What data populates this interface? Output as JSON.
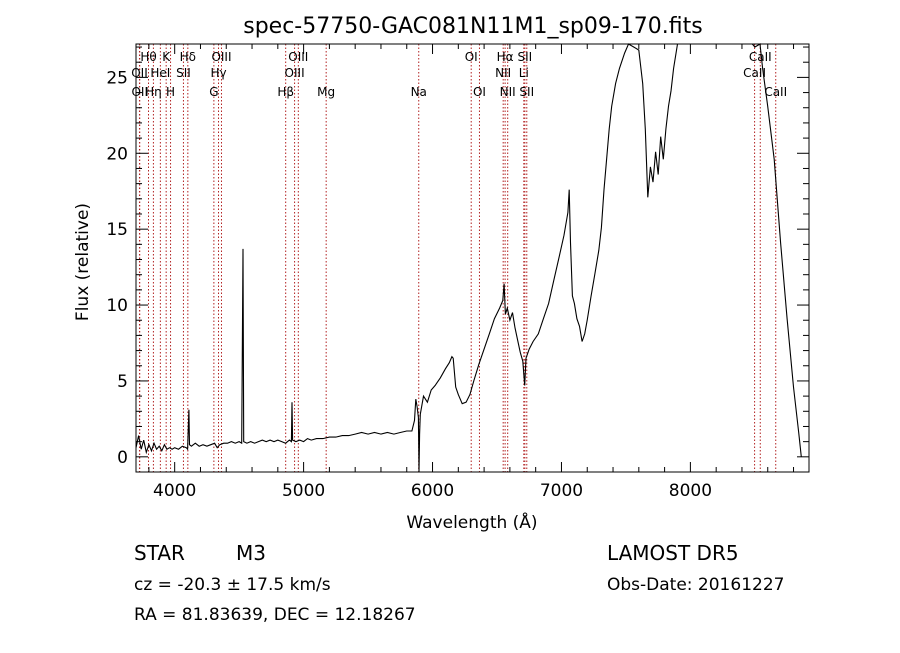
{
  "chart_data": {
    "type": "line",
    "title": "spec-57750-GAC081N11M1_sp09-170.fits",
    "xlabel": "Wavelength (Å)",
    "ylabel": "Flux (relative)",
    "xlim": [
      3700,
      8920
    ],
    "ylim": [
      -1,
      27.2
    ],
    "xticks": [
      4000,
      5000,
      6000,
      7000,
      8000
    ],
    "yticks": [
      0,
      5,
      10,
      15,
      20,
      25
    ],
    "grid": false,
    "series": [
      {
        "points": [
          [
            3700,
            0.6
          ],
          [
            3720,
            1.4
          ],
          [
            3740,
            0.5
          ],
          [
            3760,
            1.1
          ],
          [
            3780,
            0.3
          ],
          [
            3800,
            0.8
          ],
          [
            3820,
            0.4
          ],
          [
            3840,
            0.9
          ],
          [
            3860,
            0.5
          ],
          [
            3880,
            0.7
          ],
          [
            3900,
            0.4
          ],
          [
            3920,
            0.8
          ],
          [
            3940,
            0.5
          ],
          [
            3960,
            0.6
          ],
          [
            3980,
            0.5
          ],
          [
            4000,
            0.6
          ],
          [
            4030,
            0.5
          ],
          [
            4060,
            0.7
          ],
          [
            4090,
            0.6
          ],
          [
            4100,
            0.5
          ],
          [
            4110,
            3.1
          ],
          [
            4115,
            0.8
          ],
          [
            4130,
            0.7
          ],
          [
            4160,
            0.9
          ],
          [
            4190,
            0.7
          ],
          [
            4220,
            0.8
          ],
          [
            4250,
            0.7
          ],
          [
            4280,
            0.8
          ],
          [
            4310,
            0.9
          ],
          [
            4330,
            0.6
          ],
          [
            4350,
            0.8
          ],
          [
            4380,
            0.9
          ],
          [
            4410,
            0.9
          ],
          [
            4440,
            1.0
          ],
          [
            4470,
            0.9
          ],
          [
            4500,
            1.0
          ],
          [
            4520,
            0.9
          ],
          [
            4530,
            13.7
          ],
          [
            4535,
            1.0
          ],
          [
            4560,
            0.9
          ],
          [
            4590,
            1.0
          ],
          [
            4620,
            0.9
          ],
          [
            4650,
            1.0
          ],
          [
            4680,
            1.1
          ],
          [
            4710,
            1.0
          ],
          [
            4740,
            1.1
          ],
          [
            4770,
            1.0
          ],
          [
            4800,
            1.1
          ],
          [
            4830,
            1.0
          ],
          [
            4860,
            0.9
          ],
          [
            4890,
            1.1
          ],
          [
            4905,
            1.0
          ],
          [
            4910,
            3.6
          ],
          [
            4915,
            1.1
          ],
          [
            4940,
            1.0
          ],
          [
            4970,
            1.1
          ],
          [
            5000,
            1.0
          ],
          [
            5030,
            1.2
          ],
          [
            5060,
            1.1
          ],
          [
            5100,
            1.2
          ],
          [
            5150,
            1.2
          ],
          [
            5200,
            1.3
          ],
          [
            5250,
            1.3
          ],
          [
            5300,
            1.4
          ],
          [
            5350,
            1.4
          ],
          [
            5400,
            1.5
          ],
          [
            5450,
            1.6
          ],
          [
            5500,
            1.5
          ],
          [
            5550,
            1.6
          ],
          [
            5600,
            1.5
          ],
          [
            5650,
            1.6
          ],
          [
            5700,
            1.5
          ],
          [
            5750,
            1.6
          ],
          [
            5800,
            1.7
          ],
          [
            5840,
            1.7
          ],
          [
            5860,
            2.4
          ],
          [
            5870,
            3.8
          ],
          [
            5880,
            3.3
          ],
          [
            5890,
            2.6
          ],
          [
            5895,
            -1.0
          ],
          [
            5900,
            1.5
          ],
          [
            5905,
            2.8
          ],
          [
            5930,
            4.0
          ],
          [
            5960,
            3.6
          ],
          [
            5990,
            4.4
          ],
          [
            6020,
            4.7
          ],
          [
            6060,
            5.2
          ],
          [
            6100,
            5.8
          ],
          [
            6130,
            6.2
          ],
          [
            6150,
            6.6
          ],
          [
            6160,
            6.5
          ],
          [
            6180,
            4.6
          ],
          [
            6200,
            4.1
          ],
          [
            6230,
            3.5
          ],
          [
            6260,
            3.6
          ],
          [
            6290,
            4.1
          ],
          [
            6320,
            5.0
          ],
          [
            6360,
            6.1
          ],
          [
            6400,
            7.1
          ],
          [
            6440,
            8.1
          ],
          [
            6480,
            9.1
          ],
          [
            6520,
            9.8
          ],
          [
            6545,
            10.3
          ],
          [
            6555,
            11.4
          ],
          [
            6565,
            9.4
          ],
          [
            6580,
            9.8
          ],
          [
            6600,
            9.0
          ],
          [
            6620,
            9.5
          ],
          [
            6640,
            8.5
          ],
          [
            6660,
            7.7
          ],
          [
            6680,
            6.9
          ],
          [
            6700,
            6.3
          ],
          [
            6715,
            4.7
          ],
          [
            6725,
            6.5
          ],
          [
            6750,
            7.1
          ],
          [
            6780,
            7.6
          ],
          [
            6820,
            8.1
          ],
          [
            6860,
            9.1
          ],
          [
            6900,
            10.1
          ],
          [
            6940,
            11.6
          ],
          [
            6980,
            13.1
          ],
          [
            7020,
            14.6
          ],
          [
            7050,
            16.1
          ],
          [
            7060,
            17.6
          ],
          [
            7070,
            14.1
          ],
          [
            7085,
            10.6
          ],
          [
            7100,
            10.1
          ],
          [
            7120,
            9.1
          ],
          [
            7140,
            8.6
          ],
          [
            7160,
            7.6
          ],
          [
            7180,
            8.1
          ],
          [
            7200,
            9.0
          ],
          [
            7230,
            10.6
          ],
          [
            7260,
            12.1
          ],
          [
            7290,
            13.6
          ],
          [
            7310,
            15.1
          ],
          [
            7330,
            17.6
          ],
          [
            7350,
            19.6
          ],
          [
            7370,
            21.6
          ],
          [
            7390,
            23.1
          ],
          [
            7420,
            24.6
          ],
          [
            7450,
            25.6
          ],
          [
            7490,
            26.6
          ],
          [
            7520,
            27.2
          ],
          [
            7560,
            27.0
          ],
          [
            7600,
            26.8
          ],
          [
            7630,
            24.6
          ],
          [
            7650,
            21.6
          ],
          [
            7670,
            17.1
          ],
          [
            7690,
            19.1
          ],
          [
            7710,
            18.1
          ],
          [
            7730,
            20.1
          ],
          [
            7750,
            18.6
          ],
          [
            7770,
            21.1
          ],
          [
            7790,
            19.6
          ],
          [
            7810,
            21.6
          ],
          [
            7830,
            23.1
          ],
          [
            7850,
            24.1
          ],
          [
            7870,
            25.6
          ],
          [
            7900,
            27.2
          ],
          [
            7950,
            27.2
          ],
          [
            8000,
            27.2
          ],
          [
            8100,
            27.2
          ],
          [
            8200,
            27.2
          ],
          [
            8300,
            27.2
          ],
          [
            8400,
            27.2
          ],
          [
            8450,
            27.2
          ],
          [
            8480,
            27.2
          ],
          [
            8500,
            27.0
          ],
          [
            8540,
            27.2
          ],
          [
            8560,
            25.6
          ],
          [
            8600,
            23.1
          ],
          [
            8650,
            19.6
          ],
          [
            8700,
            14.1
          ],
          [
            8750,
            9.1
          ],
          [
            8800,
            4.6
          ],
          [
            8840,
            1.6
          ],
          [
            8860,
            0.0
          ]
        ]
      }
    ],
    "line_labels": [
      {
        "text": "Hθ",
        "x": 3797,
        "row": 0
      },
      {
        "text": "K",
        "x": 3934,
        "row": 0
      },
      {
        "text": "Hδ",
        "x": 4102,
        "row": 0
      },
      {
        "text": "OIII",
        "x": 4363,
        "row": 0
      },
      {
        "text": "OIII",
        "x": 4959,
        "row": 0
      },
      {
        "text": "OI",
        "x": 6300,
        "row": 0
      },
      {
        "text": "Hα",
        "x": 6563,
        "row": 0
      },
      {
        "text": "SII",
        "x": 6716,
        "row": 0
      },
      {
        "text": "CaII",
        "x": 8542,
        "row": 0
      },
      {
        "text": "OII",
        "x": 3727,
        "row": 1
      },
      {
        "text": "HeI",
        "x": 3889,
        "row": 1
      },
      {
        "text": "SII",
        "x": 4068,
        "row": 1
      },
      {
        "text": "Hγ",
        "x": 4340,
        "row": 1
      },
      {
        "text": "OIII",
        "x": 4930,
        "row": 1
      },
      {
        "text": "NII",
        "x": 6548,
        "row": 1
      },
      {
        "text": "Li",
        "x": 6708,
        "row": 1
      },
      {
        "text": "CaII",
        "x": 8498,
        "row": 1
      },
      {
        "text": "OII",
        "x": 3729,
        "row": 2
      },
      {
        "text": "Hη",
        "x": 3835,
        "row": 2
      },
      {
        "text": "H",
        "x": 3968,
        "row": 2
      },
      {
        "text": "G",
        "x": 4304,
        "row": 2
      },
      {
        "text": "Hβ",
        "x": 4861,
        "row": 2
      },
      {
        "text": "Mg",
        "x": 5175,
        "row": 2
      },
      {
        "text": "Na",
        "x": 5893,
        "row": 2
      },
      {
        "text": "OI",
        "x": 6364,
        "row": 2
      },
      {
        "text": "NII",
        "x": 6583,
        "row": 2
      },
      {
        "text": "SII",
        "x": 6731,
        "row": 2
      },
      {
        "text": "CaII",
        "x": 8662,
        "row": 2
      }
    ],
    "line_marker_x": [
      3727,
      3729,
      3797,
      3835,
      3889,
      3934,
      3968,
      4068,
      4102,
      4304,
      4340,
      4363,
      4861,
      4930,
      4959,
      5175,
      5893,
      6300,
      6364,
      6548,
      6563,
      6583,
      6708,
      6716,
      6731,
      8498,
      8542,
      8662
    ],
    "colors": {
      "line": "#000000",
      "marker": "#b22222"
    }
  },
  "info": {
    "object_class": "STAR",
    "subclass": "M3",
    "survey": "LAMOST DR5",
    "redshift": "cz = -20.3 ± 17.5 km/s",
    "obs_date": "Obs-Date: 20161227",
    "coords": "RA =  81.83639, DEC =  12.18267"
  }
}
